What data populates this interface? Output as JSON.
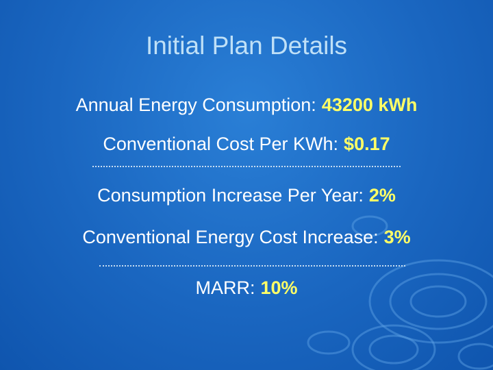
{
  "title": "Initial Plan Details",
  "items": [
    {
      "label": "Annual Energy Consumption:",
      "value": "43200 kWh"
    },
    {
      "label": "Conventional Cost Per KWh:",
      "value": "$0.17"
    },
    {
      "label": "Consumption Increase Per Year:",
      "value": "2%"
    },
    {
      "label": "Conventional Energy Cost Increase:",
      "value": "3%"
    },
    {
      "label": "MARR:",
      "value": "10%"
    }
  ]
}
